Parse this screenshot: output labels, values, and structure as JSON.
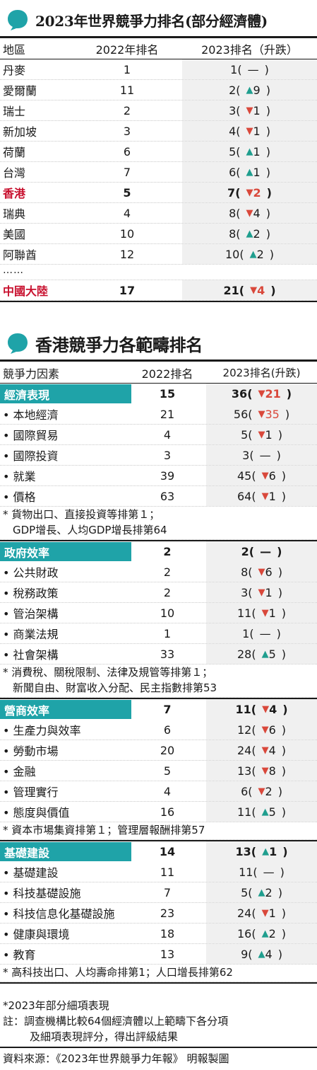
{
  "table1": {
    "title": "2023年世界競爭力排名(部分經濟體)",
    "headers": [
      "地區",
      "2022年排名",
      "2023排名（升跌）"
    ],
    "rows": [
      {
        "region": "丹麥",
        "r2022": "1",
        "r2023": "1",
        "dir": "none",
        "chg": "—",
        "style": "normal"
      },
      {
        "region": "愛爾蘭",
        "r2022": "11",
        "r2023": "2",
        "dir": "up",
        "chg": "9",
        "style": "normal"
      },
      {
        "region": "瑞士",
        "r2022": "2",
        "r2023": "3",
        "dir": "down",
        "chg": "1",
        "style": "normal"
      },
      {
        "region": "新加坡",
        "r2022": "3",
        "r2023": "4",
        "dir": "down",
        "chg": "1",
        "style": "normal"
      },
      {
        "region": "荷蘭",
        "r2022": "6",
        "r2023": "5",
        "dir": "up",
        "chg": "1",
        "style": "normal"
      },
      {
        "region": "台灣",
        "r2022": "7",
        "r2023": "6",
        "dir": "up",
        "chg": "1",
        "style": "normal"
      },
      {
        "region": "香港",
        "r2022": "5",
        "r2023": "7",
        "dir": "down",
        "chg": "2",
        "style": "hk"
      },
      {
        "region": "瑞典",
        "r2022": "4",
        "r2023": "8",
        "dir": "down",
        "chg": "4",
        "style": "normal"
      },
      {
        "region": "美國",
        "r2022": "10",
        "r2023": "8",
        "dir": "up",
        "chg": "2",
        "style": "normal"
      },
      {
        "region": "阿聯酋",
        "r2022": "12",
        "r2023": "10",
        "dir": "up",
        "chg": "2",
        "style": "normal"
      }
    ],
    "ellipsis": "……",
    "last_row": {
      "region": "中國大陸",
      "r2022": "17",
      "r2023": "21",
      "dir": "down",
      "chg": "4",
      "style": "cn"
    }
  },
  "table2": {
    "title": "香港競爭力各範疇排名",
    "headers": [
      "競爭力因素",
      "2022排名",
      "2023排名(升跌)"
    ],
    "sections": [
      {
        "name": "經濟表現",
        "r2022": "15",
        "r2023": "36",
        "dir": "down",
        "chg": "21",
        "emph": true,
        "items": [
          {
            "name": "本地經濟",
            "r2022": "21",
            "r2023": "56",
            "dir": "down",
            "chg": "35",
            "emph": true
          },
          {
            "name": "國際貿易",
            "r2022": "4",
            "r2023": "5",
            "dir": "down",
            "chg": "1"
          },
          {
            "name": "國際投資",
            "r2022": "3",
            "r2023": "3",
            "dir": "none",
            "chg": "—"
          },
          {
            "name": "就業",
            "r2022": "39",
            "r2023": "45",
            "dir": "down",
            "chg": "6"
          },
          {
            "name": "價格",
            "r2022": "63",
            "r2023": "64",
            "dir": "down",
            "chg": "1"
          }
        ],
        "note": [
          "* 貨物出口、直接投資等排第１；",
          "GDP增長、人均GDP增長排第64"
        ]
      },
      {
        "name": "政府效率",
        "r2022": "2",
        "r2023": "2",
        "dir": "none",
        "chg": "—",
        "items": [
          {
            "name": "公共財政",
            "r2022": "2",
            "r2023": "8",
            "dir": "down",
            "chg": "6"
          },
          {
            "name": "稅務政策",
            "r2022": "2",
            "r2023": "3",
            "dir": "down",
            "chg": "1"
          },
          {
            "name": "管治架構",
            "r2022": "10",
            "r2023": "11",
            "dir": "down",
            "chg": "1"
          },
          {
            "name": "商業法規",
            "r2022": "1",
            "r2023": "1",
            "dir": "none",
            "chg": "—"
          },
          {
            "name": "社會架構",
            "r2022": "33",
            "r2023": "28",
            "dir": "up",
            "chg": "5"
          }
        ],
        "note": [
          "* 消費稅、關稅限制、法律及規管等排第１；",
          "新聞自由、財富收入分配、民主指數排第53"
        ]
      },
      {
        "name": "營商效率",
        "r2022": "7",
        "r2023": "11",
        "dir": "down",
        "chg": "4",
        "items": [
          {
            "name": "生產力與效率",
            "r2022": "6",
            "r2023": "12",
            "dir": "down",
            "chg": "6"
          },
          {
            "name": "勞動市場",
            "r2022": "20",
            "r2023": "24",
            "dir": "down",
            "chg": "4"
          },
          {
            "name": "金融",
            "r2022": "5",
            "r2023": "13",
            "dir": "down",
            "chg": "8"
          },
          {
            "name": "管理實行",
            "r2022": "4",
            "r2023": "6",
            "dir": "down",
            "chg": "2"
          },
          {
            "name": "態度與價值",
            "r2022": "16",
            "r2023": "11",
            "dir": "up",
            "chg": "5"
          }
        ],
        "note": [
          "* 資本市場集資排第１；管理層報酬排第57"
        ]
      },
      {
        "name": "基礎建設",
        "r2022": "14",
        "r2023": "13",
        "dir": "up",
        "chg": "1",
        "items": [
          {
            "name": "基礎建設",
            "r2022": "11",
            "r2023": "11",
            "dir": "none",
            "chg": "—"
          },
          {
            "name": "科技基礎設施",
            "r2022": "7",
            "r2023": "5",
            "dir": "up",
            "chg": "2"
          },
          {
            "name": "科技信息化基礎設施",
            "r2022": "23",
            "r2023": "24",
            "dir": "down",
            "chg": "1"
          },
          {
            "name": "健康與環境",
            "r2022": "18",
            "r2023": "16",
            "dir": "up",
            "chg": "2"
          },
          {
            "name": "教育",
            "r2022": "13",
            "r2023": "9",
            "dir": "up",
            "chg": "4"
          }
        ],
        "note": [
          "* 高科技出口、人均壽命排第1；人口增長排第62"
        ]
      }
    ]
  },
  "footer": {
    "note1": "*2023年部分細項表現",
    "note2a": "註：調查機構比較64個經濟體以上範疇下各分項",
    "note2b": "及細項表現評分，得出評級結果",
    "source": "資料來源：《2023年世界競爭力年報》 明報製圖"
  },
  "colors": {
    "teal": "#1fa3a8",
    "up": "#1f9e8e",
    "down": "#d9483b",
    "hk_red": "#c8102e",
    "shade": "#f0f0f0"
  }
}
